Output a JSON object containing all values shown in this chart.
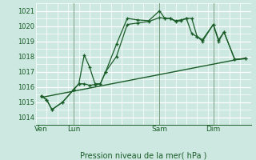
{
  "title": "Pression niveau de la mer( hPa )",
  "bg_color": "#cce8e0",
  "grid_color": "#ffffff",
  "line_color": "#1a5c28",
  "ylim": [
    1013.5,
    1021.5
  ],
  "yticks": [
    1014,
    1015,
    1016,
    1017,
    1018,
    1019,
    1020,
    1021
  ],
  "day_labels": [
    "Ven",
    "Lun",
    "Sam",
    "Dim"
  ],
  "day_positions": [
    0,
    3,
    11,
    16
  ],
  "xlim": [
    -0.5,
    19.5
  ],
  "series1_x": [
    0,
    0.5,
    1,
    2,
    3,
    3.5,
    4,
    4.5,
    5,
    5.5,
    6,
    7,
    8,
    9,
    10,
    11,
    11.5,
    12,
    12.5,
    13,
    13.5,
    14,
    14.5,
    15,
    16,
    16.5,
    17,
    18,
    19
  ],
  "series1_y": [
    1015.4,
    1015.15,
    1014.5,
    1015.0,
    1015.8,
    1016.2,
    1018.1,
    1017.3,
    1016.2,
    1016.2,
    1017.0,
    1018.8,
    1020.5,
    1020.4,
    1020.35,
    1021.0,
    1020.5,
    1020.5,
    1020.35,
    1020.4,
    1020.5,
    1020.5,
    1019.3,
    1019.1,
    1020.1,
    1019.0,
    1019.6,
    1017.8,
    1017.85
  ],
  "series2_x": [
    0,
    0.5,
    1,
    2,
    3,
    3.5,
    4,
    4.5,
    5,
    5.5,
    6,
    7,
    8,
    9,
    10,
    11,
    11.5,
    12,
    12.5,
    13,
    13.5,
    14,
    14.5,
    15,
    16,
    16.5,
    17,
    18,
    19
  ],
  "series2_y": [
    1015.4,
    1015.15,
    1014.5,
    1015.0,
    1015.8,
    1016.2,
    1016.2,
    1016.1,
    1016.15,
    1016.2,
    1017.0,
    1018.0,
    1020.1,
    1020.2,
    1020.3,
    1020.55,
    1020.5,
    1020.5,
    1020.3,
    1020.35,
    1020.5,
    1019.5,
    1019.3,
    1019.0,
    1020.1,
    1019.1,
    1019.6,
    1017.8,
    1017.85
  ],
  "trend_x": [
    0,
    19
  ],
  "trend_y": [
    1015.3,
    1017.9
  ],
  "vline_positions": [
    3,
    11,
    16
  ],
  "minor_x_step": 1.0,
  "major_x_step": 3.0
}
